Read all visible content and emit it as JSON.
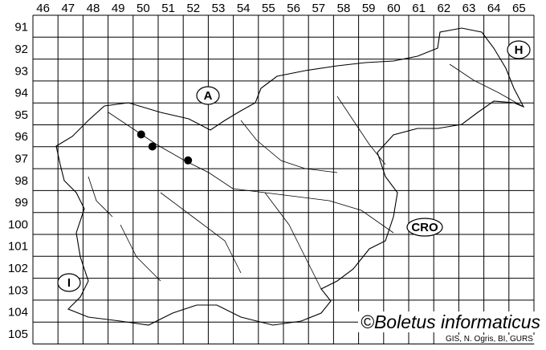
{
  "map": {
    "columns": [
      "46",
      "47",
      "48",
      "49",
      "50",
      "51",
      "52",
      "53",
      "54",
      "55",
      "56",
      "57",
      "58",
      "59",
      "60",
      "61",
      "62",
      "63",
      "64",
      "65"
    ],
    "rows": [
      "91",
      "92",
      "93",
      "94",
      "95",
      "96",
      "97",
      "98",
      "99",
      "100",
      "101",
      "102",
      "103",
      "104",
      "105"
    ],
    "country_labels": [
      {
        "text": "A",
        "cell": [
          "52",
          "94"
        ]
      },
      {
        "text": "H",
        "cell": [
          "65",
          "92"
        ]
      },
      {
        "text": "CRO",
        "cell": [
          "61",
          "100"
        ]
      },
      {
        "text": "I",
        "cell": [
          "47",
          "103"
        ]
      }
    ],
    "records": [
      {
        "cell": [
          "50",
          "96"
        ]
      },
      {
        "cell": [
          "50",
          "96"
        ]
      },
      {
        "cell": [
          "52",
          "97"
        ]
      }
    ],
    "credit": "©Boletus informaticus",
    "source": "GIS, N. Ogris, BI, GURS"
  }
}
